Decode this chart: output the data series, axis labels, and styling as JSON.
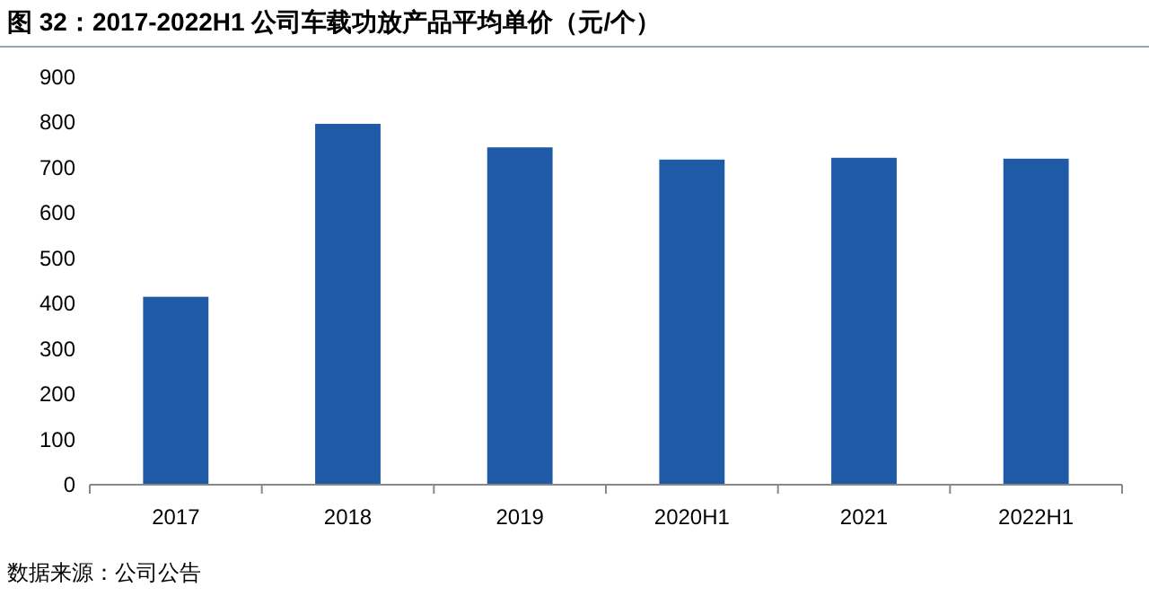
{
  "chart_data": {
    "type": "bar",
    "title": "图 32：2017-2022H1 公司车载功放产品平均单价（元/个）",
    "categories": [
      "2017",
      "2018",
      "2019",
      "2020H1",
      "2021",
      "2022H1"
    ],
    "values": [
      415,
      797,
      745,
      718,
      722,
      720
    ],
    "color": "#1f5aa6",
    "ylim": [
      0,
      900
    ],
    "yticks": [
      0,
      100,
      200,
      300,
      400,
      500,
      600,
      700,
      800,
      900
    ],
    "grid": false,
    "annotations": [
      "数据来源：公司公告"
    ]
  }
}
